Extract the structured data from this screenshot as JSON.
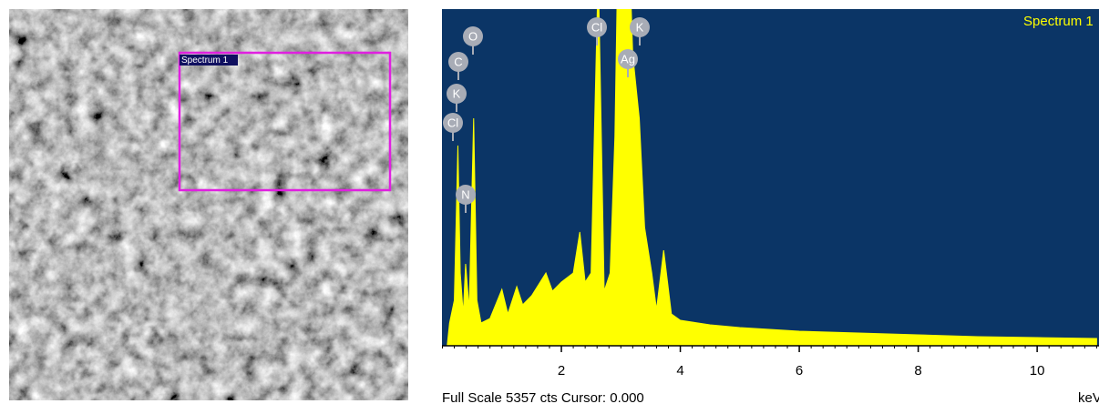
{
  "image": {
    "region_label": "Spectrum 1"
  },
  "chart_data": {
    "type": "area",
    "title": "Spectrum 1",
    "color": "#ffff00",
    "background": "#0b3566",
    "x": [
      0.08,
      0.12,
      0.2,
      0.26,
      0.3,
      0.35,
      0.39,
      0.45,
      0.525,
      0.58,
      0.65,
      0.8,
      1.0,
      1.1,
      1.25,
      1.35,
      1.5,
      1.74,
      1.85,
      2.0,
      2.2,
      2.31,
      2.4,
      2.5,
      2.62,
      2.72,
      2.82,
      2.9,
      2.98,
      3.1,
      3.2,
      3.31,
      3.4,
      3.52,
      3.6,
      3.72,
      3.85,
      4.0,
      4.5,
      5.0,
      6.0,
      7.0,
      8.0,
      9.0,
      10.0,
      11.0
    ],
    "values": [
      0,
      362,
      724,
      3186,
      1158,
      507,
      1303,
      579,
      3620,
      724,
      362,
      434,
      898,
      507,
      941,
      652,
      796,
      1158,
      869,
      1014,
      1158,
      1810,
      1014,
      1158,
      6000,
      869,
      1158,
      3330,
      8000,
      7500,
      4634,
      3620,
      1882,
      1158,
      579,
      1520,
      507,
      405,
      333,
      290,
      232,
      203,
      174,
      145,
      130,
      116
    ],
    "xlim": [
      0,
      11.04
    ],
    "ylim": [
      0,
      5357
    ],
    "xticks": [
      2,
      4,
      6,
      8,
      10
    ],
    "xlabel": "keV",
    "footer": "Full Scale 5357 cts Cursor: 0.000",
    "annotations": [
      "O",
      "C",
      "K",
      "Cl",
      "N",
      "Cl",
      "K",
      "Ag"
    ]
  }
}
